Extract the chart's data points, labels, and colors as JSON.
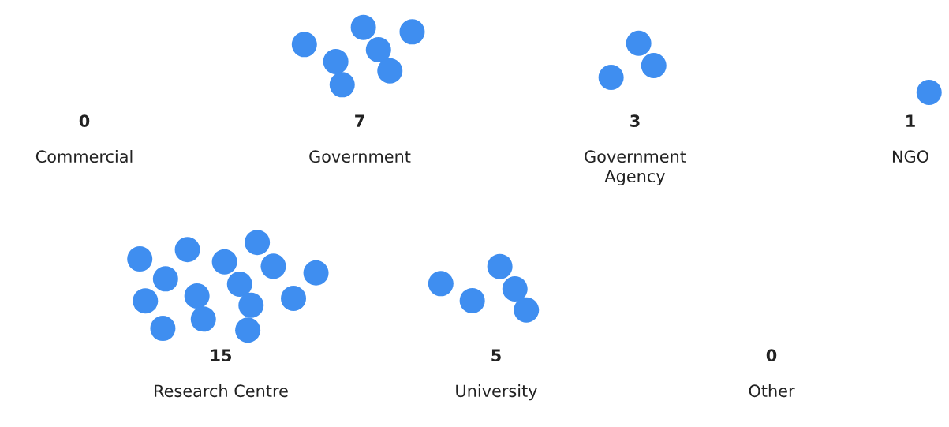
{
  "chart_data": {
    "type": "other",
    "categories": [
      "Commercial",
      "Government",
      "Government\nAgency",
      "NGO",
      "Research Centre",
      "University",
      "Other"
    ],
    "values": [
      0,
      7,
      3,
      1,
      15,
      5,
      0
    ],
    "color": "#3f8ef0",
    "data_labels": true
  }
}
